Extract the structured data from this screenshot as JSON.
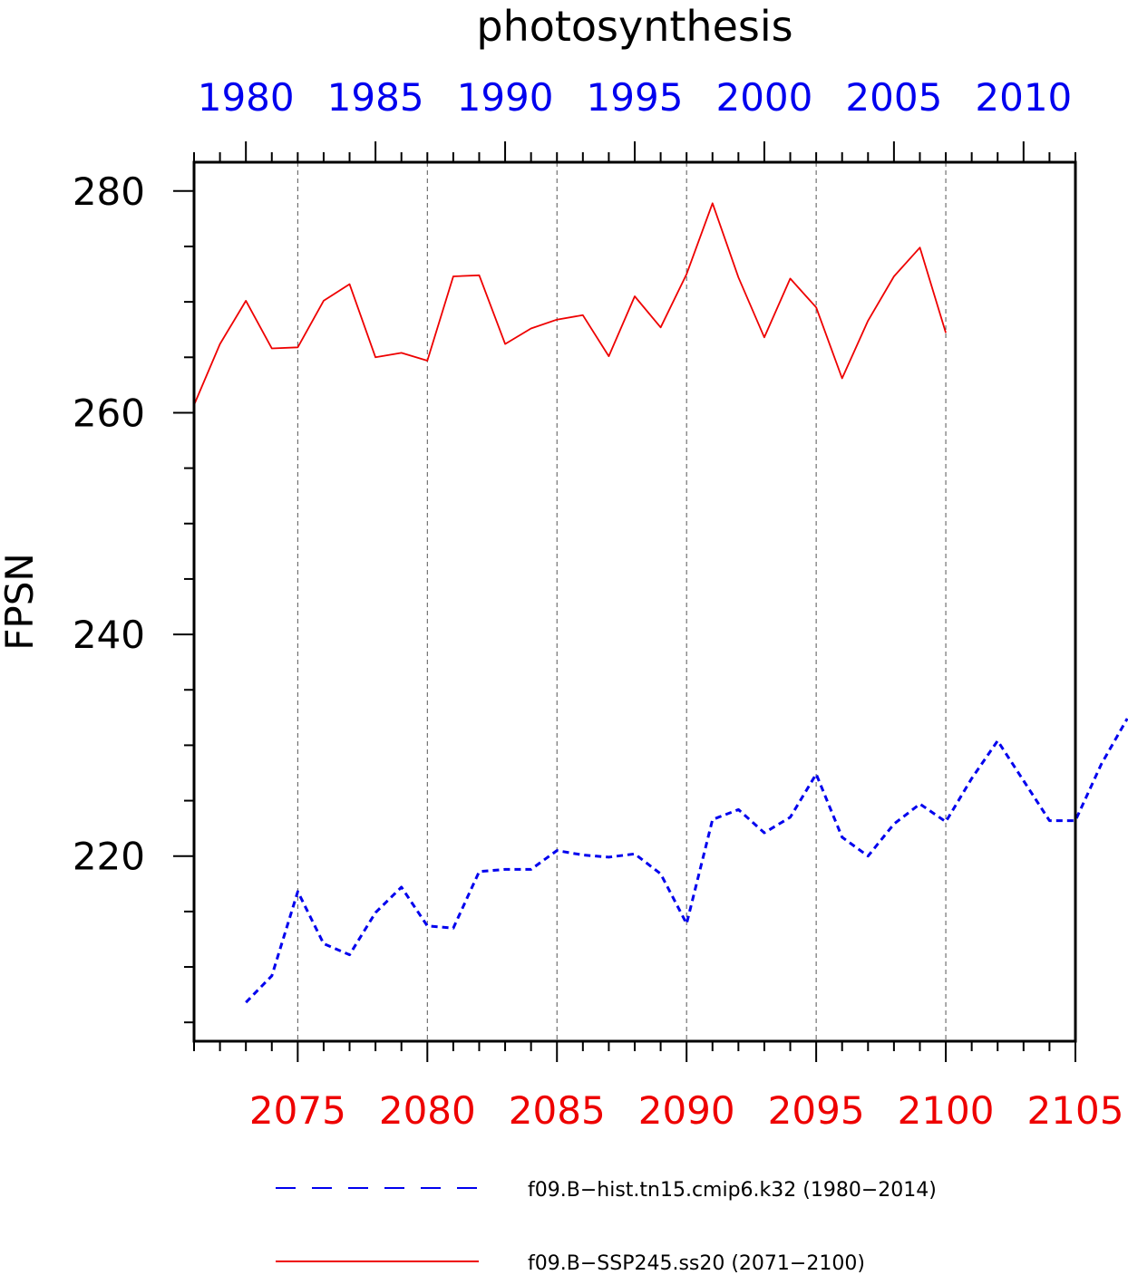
{
  "chart_data": {
    "type": "line",
    "title": "photosynthesis",
    "ylabel": "FPSN",
    "xlabel": "",
    "ylim": [
      203.3,
      282.6
    ],
    "yticks": [
      220,
      240,
      260,
      280
    ],
    "grid": "vertical dashed",
    "legend_position": "bottom",
    "colors": {
      "hist": "#0000ee",
      "ssp": "#ee0000",
      "axis": "#000000",
      "grid": "#555555"
    },
    "top_axis": {
      "label_color": "#0000ee",
      "range": [
        1978,
        2012
      ],
      "ticks": [
        1980,
        1985,
        1990,
        1995,
        2000,
        2005,
        2010
      ],
      "tick_labels": [
        "1980",
        "1985",
        "1990",
        "1995",
        "2000",
        "2005",
        "2010"
      ]
    },
    "bottom_axis": {
      "label_color": "#ee0000",
      "range": [
        2071,
        2105
      ],
      "ticks": [
        2075,
        2080,
        2085,
        2090,
        2095,
        2100,
        2105
      ],
      "tick_labels": [
        "2075",
        "2080",
        "2085",
        "2090",
        "2095",
        "2100",
        "2105"
      ]
    },
    "series": [
      {
        "name": "f09.B−hist.tn15.cmip6.k32 (1980−2014)",
        "axis": "top",
        "style": "dashed",
        "color": "#0000ee",
        "x": [
          1980,
          1981,
          1982,
          1983,
          1984,
          1985,
          1986,
          1987,
          1988,
          1989,
          1990,
          1991,
          1992,
          1993,
          1994,
          1995,
          1996,
          1997,
          1998,
          1999,
          2000,
          2001,
          2002,
          2003,
          2004,
          2005,
          2006,
          2007,
          2008,
          2009,
          2010,
          2011,
          2012,
          2013,
          2014
        ],
        "values": [
          206.8,
          209.2,
          216.8,
          212.1,
          211.1,
          214.9,
          217.2,
          213.7,
          213.5,
          218.6,
          218.8,
          218.8,
          220.5,
          220.1,
          219.9,
          220.2,
          218.4,
          213.9,
          223.3,
          224.2,
          222.1,
          223.5,
          227.4,
          221.7,
          220.0,
          222.9,
          224.7,
          223.1,
          227.0,
          230.4,
          226.8,
          223.2,
          223.2,
          228.3,
          232.4
        ]
      },
      {
        "name": "f09.B−SSP245.ss20 (2071−2100)",
        "axis": "bottom",
        "style": "solid",
        "color": "#ee0000",
        "x": [
          2071,
          2072,
          2073,
          2074,
          2075,
          2076,
          2077,
          2078,
          2079,
          2080,
          2081,
          2082,
          2083,
          2084,
          2085,
          2086,
          2087,
          2088,
          2089,
          2090,
          2091,
          2092,
          2093,
          2094,
          2095,
          2096,
          2097,
          2098,
          2099,
          2100
        ],
        "values": [
          260.7,
          266.2,
          270.1,
          265.8,
          265.9,
          270.1,
          271.6,
          265.0,
          265.4,
          264.7,
          272.3,
          272.4,
          266.2,
          267.6,
          268.4,
          268.8,
          265.1,
          270.5,
          267.7,
          272.5,
          278.9,
          272.2,
          266.8,
          272.1,
          269.5,
          263.1,
          268.3,
          272.3,
          274.9,
          267.2
        ]
      }
    ]
  }
}
